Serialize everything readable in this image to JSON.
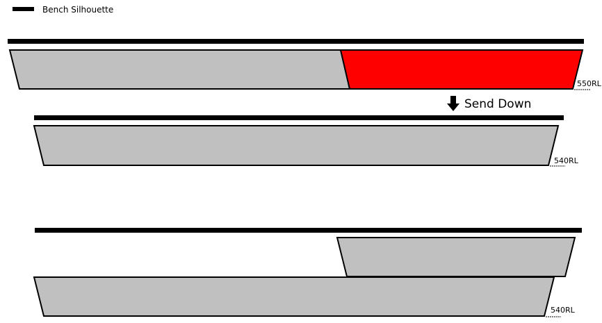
{
  "legend": {
    "label": "Bench Silhouette",
    "color": "#000000"
  },
  "benches": [
    {
      "level": "550RL",
      "fill": "#c0c0c0",
      "highlight": "#ff0000"
    },
    {
      "level": "540RL",
      "fill": "#c0c0c0"
    },
    {
      "level": "540RL",
      "fill": "#c0c0c0"
    }
  ],
  "action": {
    "label": "Send Down",
    "icon": "arrow-down-icon"
  }
}
